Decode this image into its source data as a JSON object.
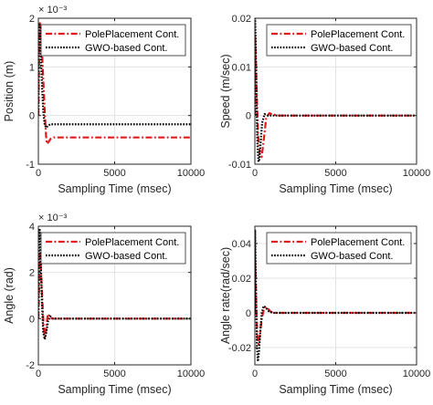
{
  "chart_data": [
    {
      "type": "line",
      "title": "",
      "xlabel": "Sampling Time (msec)",
      "ylabel": "Position (m)",
      "exponent_label": "× 10⁻³",
      "xlim": [
        0,
        10000
      ],
      "ylim": [
        -1,
        2
      ],
      "xticks": [
        0,
        5000,
        10000
      ],
      "yticks": [
        -1,
        0,
        1,
        2
      ],
      "grid": true,
      "legend_position": "top-right",
      "series": [
        {
          "name": "PolePlacement Cont.",
          "color": "#e31a1c",
          "style": "dash-dot",
          "x": [
            0,
            40,
            100,
            200,
            300,
            400,
            500,
            560,
            650,
            800,
            1000,
            1300,
            2000,
            4000,
            7000,
            10000
          ],
          "y": [
            0,
            1.0,
            1.9,
            1.6,
            0.9,
            0.2,
            -0.4,
            -0.58,
            -0.55,
            -0.48,
            -0.45,
            -0.45,
            -0.45,
            -0.45,
            -0.45,
            -0.45
          ]
        },
        {
          "name": "GWO-based Cont.",
          "color": "#000000",
          "style": "dotted",
          "x": [
            0,
            40,
            100,
            160,
            240,
            330,
            420,
            520,
            650,
            800,
            1000,
            2000,
            5000,
            10000
          ],
          "y": [
            0,
            1.9,
            1.85,
            1.3,
            0.6,
            0.05,
            -0.2,
            -0.25,
            -0.2,
            -0.18,
            -0.18,
            -0.18,
            -0.18,
            -0.18
          ]
        }
      ]
    },
    {
      "type": "line",
      "title": "",
      "xlabel": "Sampling Time (msec)",
      "ylabel": "Speed (m/sec)",
      "xlim": [
        0,
        10000
      ],
      "ylim": [
        -0.01,
        0.02
      ],
      "xticks": [
        0,
        5000,
        10000
      ],
      "yticks": [
        -0.01,
        0,
        0.01,
        0.02
      ],
      "ytick_labels": [
        "-0.01",
        "0",
        "0.01",
        "0.02"
      ],
      "grid": true,
      "legend_position": "top-right",
      "series": [
        {
          "name": "PolePlacement Cont.",
          "color": "#e31a1c",
          "style": "dash-dot",
          "x": [
            0,
            20,
            60,
            120,
            200,
            300,
            420,
            550,
            700,
            900,
            1100,
            1500,
            3000,
            10000
          ],
          "y": [
            0,
            0.016,
            0.012,
            0.004,
            -0.004,
            -0.008,
            -0.0085,
            -0.005,
            -0.0005,
            0.0005,
            0.0002,
            0,
            0,
            0
          ]
        },
        {
          "name": "GWO-based Cont.",
          "color": "#000000",
          "style": "dotted",
          "x": [
            0,
            15,
            50,
            100,
            160,
            220,
            280,
            350,
            450,
            600,
            800,
            1000,
            2000,
            10000
          ],
          "y": [
            0,
            0.02,
            0.015,
            0.004,
            -0.006,
            -0.0095,
            -0.009,
            -0.006,
            -0.0015,
            0.0003,
            0,
            0,
            0,
            0
          ]
        }
      ]
    },
    {
      "type": "line",
      "title": "",
      "xlabel": "Sampling Time (msec)",
      "ylabel": "Angle (rad)",
      "exponent_label": "× 10⁻³",
      "xlim": [
        0,
        10000
      ],
      "ylim": [
        -2,
        4
      ],
      "xticks": [
        0,
        5000,
        10000
      ],
      "yticks": [
        -2,
        0,
        2,
        4
      ],
      "grid": true,
      "legend_position": "top-right",
      "series": [
        {
          "name": "PolePlacement Cont.",
          "color": "#e31a1c",
          "style": "dash-dot",
          "x": [
            0,
            40,
            100,
            180,
            260,
            340,
            420,
            520,
            620,
            750,
            900,
            1100,
            1500,
            3000,
            10000
          ],
          "y": [
            0,
            1.0,
            2.8,
            2.0,
            0.8,
            -0.3,
            -0.8,
            -0.4,
            0.2,
            0.1,
            0,
            0,
            0,
            0,
            0
          ]
        },
        {
          "name": "GWO-based Cont.",
          "color": "#000000",
          "style": "dotted",
          "x": [
            0,
            30,
            80,
            150,
            230,
            320,
            420,
            520,
            640,
            780,
            950,
            1200,
            2000,
            10000
          ],
          "y": [
            0,
            2.5,
            3.9,
            2.6,
            0.8,
            -0.6,
            -0.9,
            -0.6,
            -0.1,
            0.1,
            0,
            0,
            0,
            0
          ]
        }
      ]
    },
    {
      "type": "line",
      "title": "",
      "xlabel": "Sampling Time (msec)",
      "ylabel": "Angle rate(rad/sec)",
      "xlim": [
        0,
        10000
      ],
      "ylim": [
        -0.03,
        0.05
      ],
      "xticks": [
        0,
        5000,
        10000
      ],
      "yticks": [
        -0.02,
        0,
        0.02,
        0.04
      ],
      "ytick_labels": [
        "-0.02",
        "0",
        "0.02",
        "0.04"
      ],
      "grid": true,
      "legend_position": "top-right",
      "series": [
        {
          "name": "PolePlacement Cont.",
          "color": "#e31a1c",
          "style": "dash-dot",
          "x": [
            0,
            15,
            50,
            100,
            160,
            230,
            320,
            420,
            550,
            700,
            850,
            1000,
            1300,
            2000,
            10000
          ],
          "y": [
            0,
            0.03,
            0.02,
            0.0,
            -0.015,
            -0.018,
            -0.012,
            -0.004,
            0.002,
            0.0035,
            0.002,
            0.0005,
            0,
            0,
            0
          ]
        },
        {
          "name": "GWO-based Cont.",
          "color": "#000000",
          "style": "dotted",
          "x": [
            0,
            10,
            40,
            80,
            130,
            190,
            260,
            340,
            430,
            540,
            680,
            850,
            1100,
            2000,
            10000
          ],
          "y": [
            0,
            0.048,
            0.03,
            0.004,
            -0.02,
            -0.028,
            -0.022,
            -0.01,
            0.0,
            0.004,
            0.003,
            0.001,
            0,
            0,
            0
          ]
        }
      ]
    }
  ]
}
